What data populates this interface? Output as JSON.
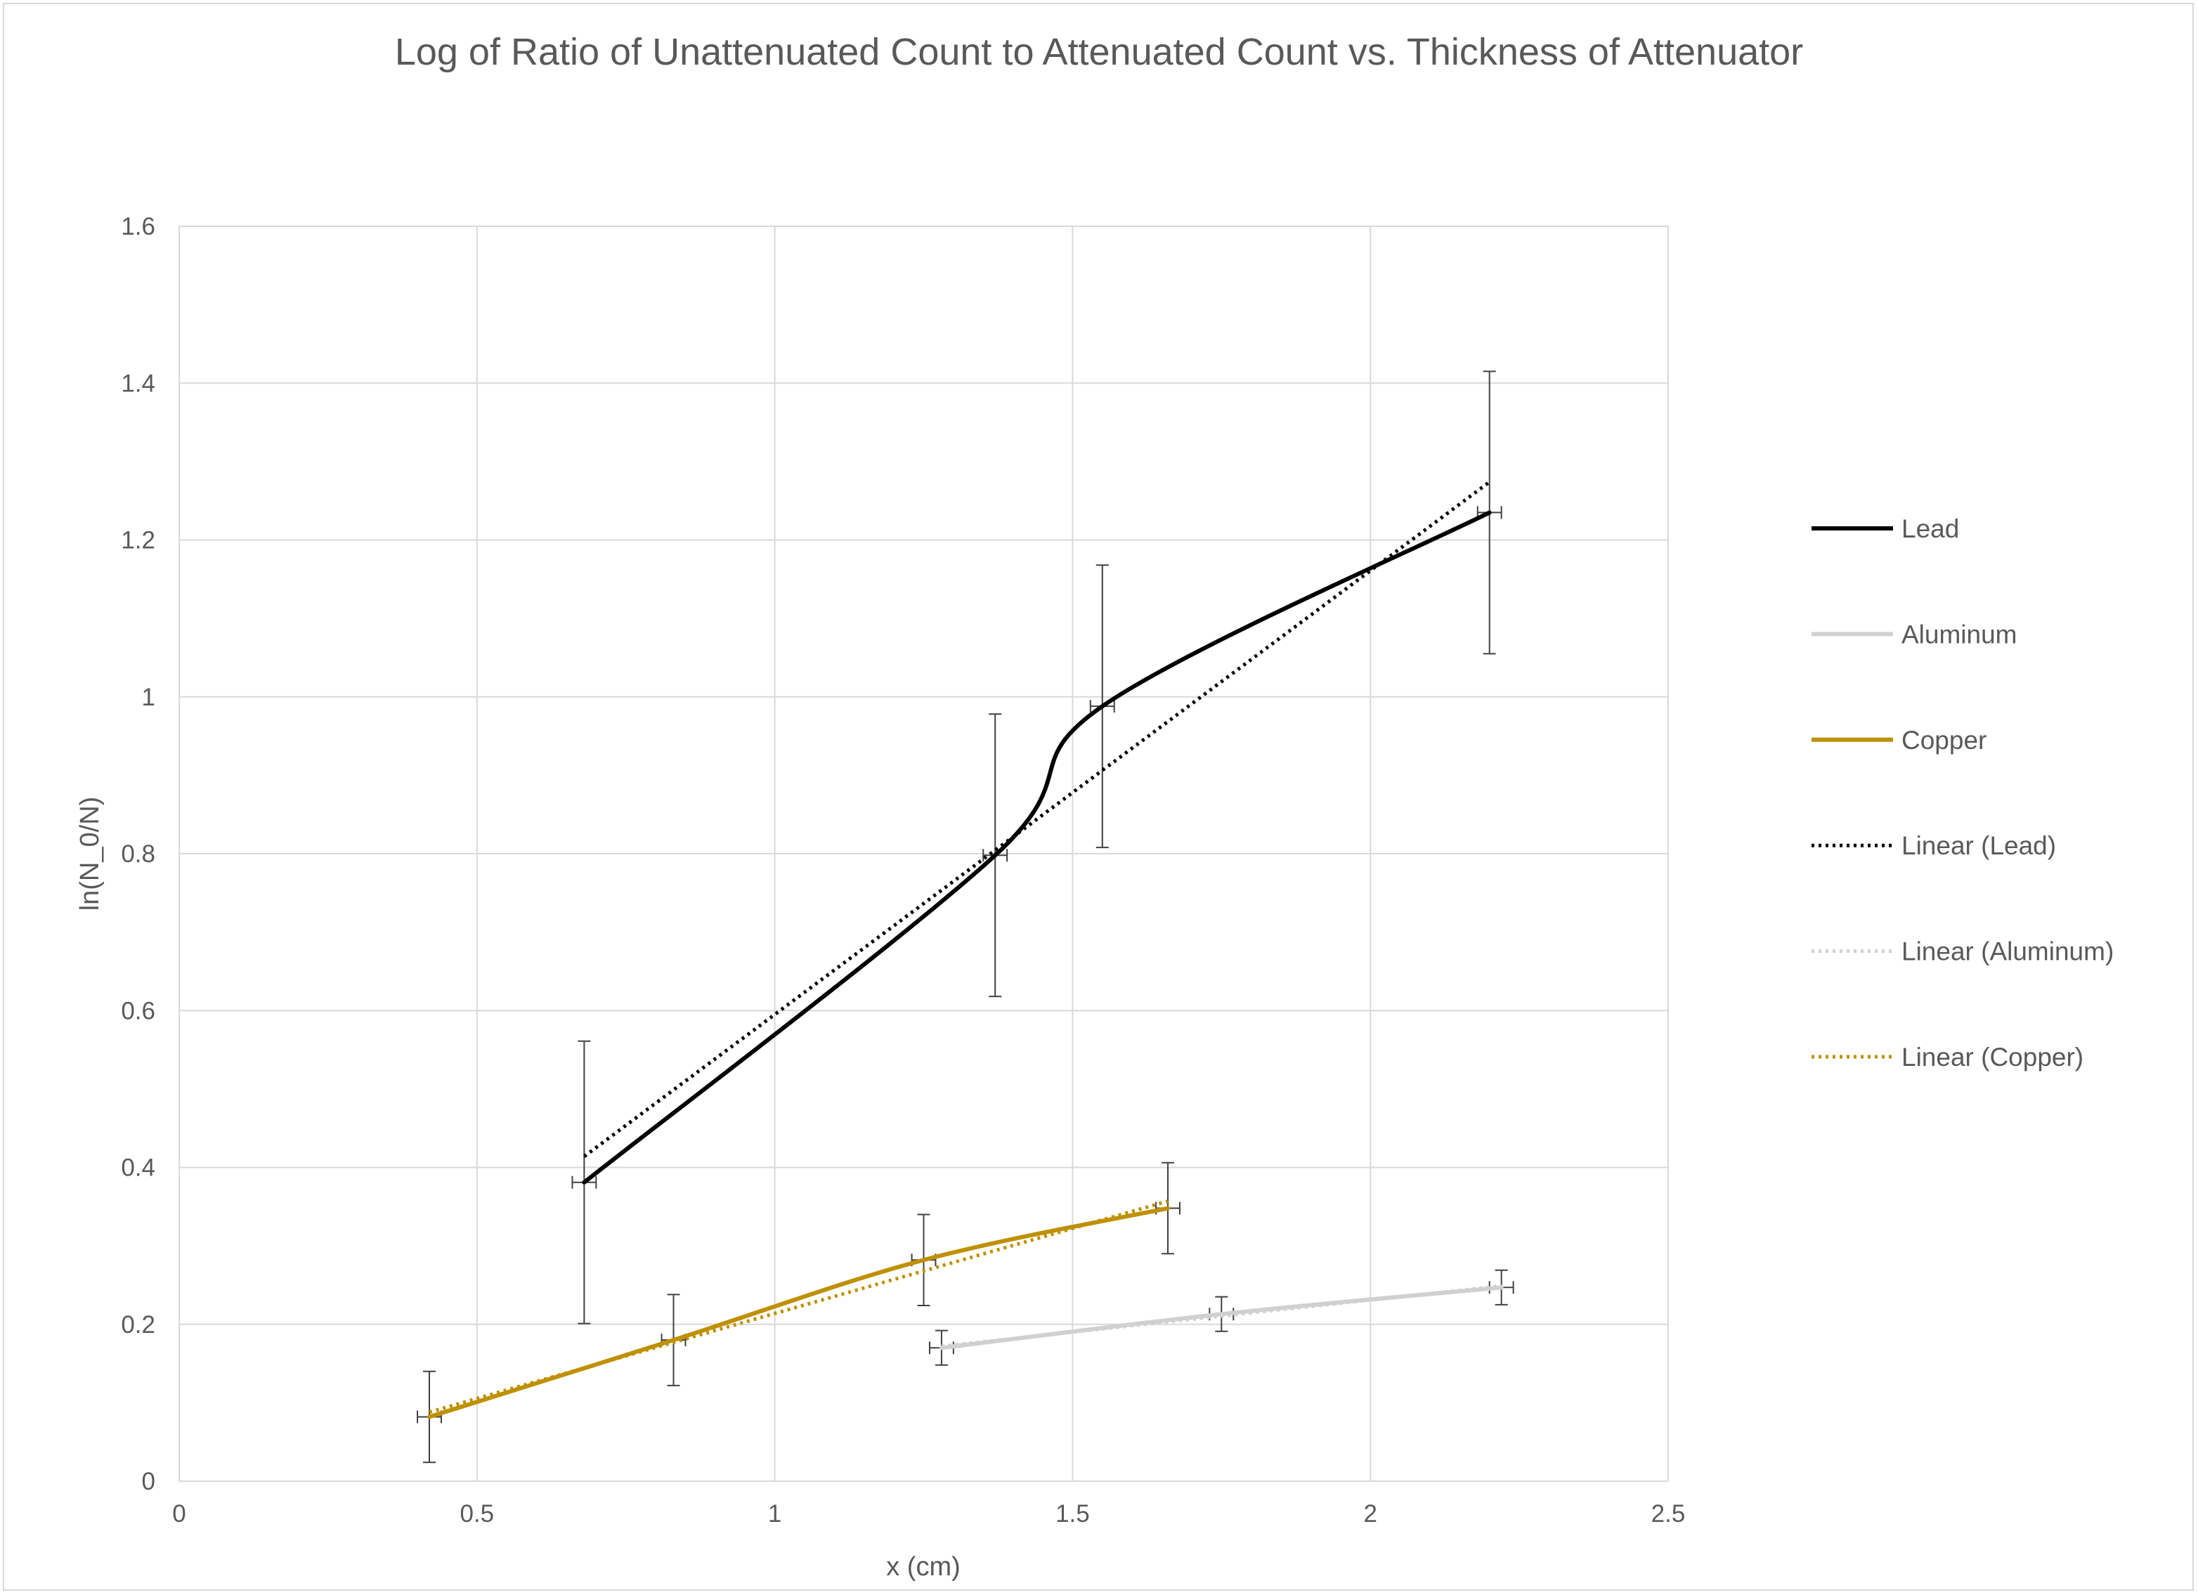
{
  "chart_data": {
    "type": "scatter",
    "title": "Log of Ratio of Unattenuated Count to Attenuated Count vs. Thickness of Attenuator",
    "xlabel": "x (cm)",
    "ylabel": "ln(N_0/N)",
    "xlim": [
      0,
      2.5
    ],
    "ylim": [
      0,
      1.6
    ],
    "x_ticks": [
      "0",
      "0.5",
      "1",
      "1.5",
      "2",
      "2.5"
    ],
    "y_ticks": [
      "0",
      "0.2",
      "0.4",
      "0.6",
      "0.8",
      "1",
      "1.2",
      "1.4",
      "1.6"
    ],
    "grid": true,
    "legend_position": "right",
    "series": [
      {
        "name": "Lead",
        "color": "#000000",
        "style": "smooth-solid",
        "points": [
          {
            "x": 0.68,
            "y": 0.381,
            "yerr": 0.18,
            "xerr": 0.02
          },
          {
            "x": 1.37,
            "y": 0.798,
            "yerr": 0.18,
            "xerr": 0.02
          },
          {
            "x": 1.55,
            "y": 0.988,
            "yerr": 0.18,
            "xerr": 0.02
          },
          {
            "x": 2.2,
            "y": 1.235,
            "yerr": 0.18,
            "xerr": 0.02
          }
        ]
      },
      {
        "name": "Aluminum",
        "color": "#d0d0d0",
        "style": "smooth-solid",
        "points": [
          {
            "x": 1.28,
            "y": 0.17,
            "yerr": 0.022,
            "xerr": 0.02
          },
          {
            "x": 1.75,
            "y": 0.213,
            "yerr": 0.022,
            "xerr": 0.02
          },
          {
            "x": 2.22,
            "y": 0.247,
            "yerr": 0.022,
            "xerr": 0.02
          }
        ]
      },
      {
        "name": "Copper",
        "color": "#bf9000",
        "style": "smooth-solid",
        "points": [
          {
            "x": 0.42,
            "y": 0.082,
            "yerr": 0.058,
            "xerr": 0.02
          },
          {
            "x": 0.83,
            "y": 0.18,
            "yerr": 0.058,
            "xerr": 0.02
          },
          {
            "x": 1.25,
            "y": 0.282,
            "yerr": 0.058,
            "xerr": 0.02
          },
          {
            "x": 1.66,
            "y": 0.348,
            "yerr": 0.058,
            "xerr": 0.02
          }
        ]
      },
      {
        "name": "Linear (Lead)",
        "color": "#000000",
        "style": "dotted",
        "trendline_of": "Lead",
        "points": [
          {
            "x": 0.68,
            "y": 0.414
          },
          {
            "x": 2.2,
            "y": 1.274
          }
        ]
      },
      {
        "name": "Linear (Aluminum)",
        "color": "#d0d0d0",
        "style": "dotted",
        "trendline_of": "Aluminum",
        "points": [
          {
            "x": 1.28,
            "y": 0.172
          },
          {
            "x": 2.22,
            "y": 0.249
          }
        ]
      },
      {
        "name": "Linear (Copper)",
        "color": "#bf9000",
        "style": "dotted",
        "trendline_of": "Copper",
        "points": [
          {
            "x": 0.42,
            "y": 0.088
          },
          {
            "x": 1.66,
            "y": 0.357
          }
        ]
      }
    ]
  }
}
